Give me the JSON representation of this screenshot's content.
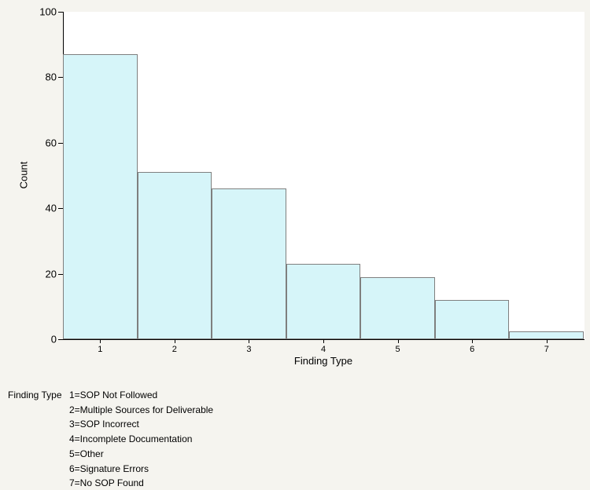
{
  "chart_data": {
    "type": "bar",
    "title": "",
    "xlabel": "Finding Type",
    "ylabel": "Count",
    "categories": [
      "1",
      "2",
      "3",
      "4",
      "5",
      "6",
      "7"
    ],
    "values": [
      87,
      51,
      46,
      23,
      19,
      12,
      2.5
    ],
    "ylim": [
      0,
      100
    ],
    "yticks": [
      0,
      20,
      40,
      60,
      80,
      100
    ],
    "grid": false,
    "legend_position": "bottom-left",
    "bar_fill": "#d6f5f9",
    "bar_border": "#7f7f7f"
  },
  "legend": {
    "title": "Finding Type",
    "items": [
      "1=SOP Not Followed",
      "2=Multiple Sources for Deliverable",
      "3=SOP Incorrect",
      "4=Incomplete Documentation",
      "5=Other",
      "6=Signature Errors",
      "7=No SOP Found"
    ]
  },
  "colors": {
    "background": "#f5f4ef",
    "plot_background": "#ffffff",
    "axis": "#000000"
  }
}
